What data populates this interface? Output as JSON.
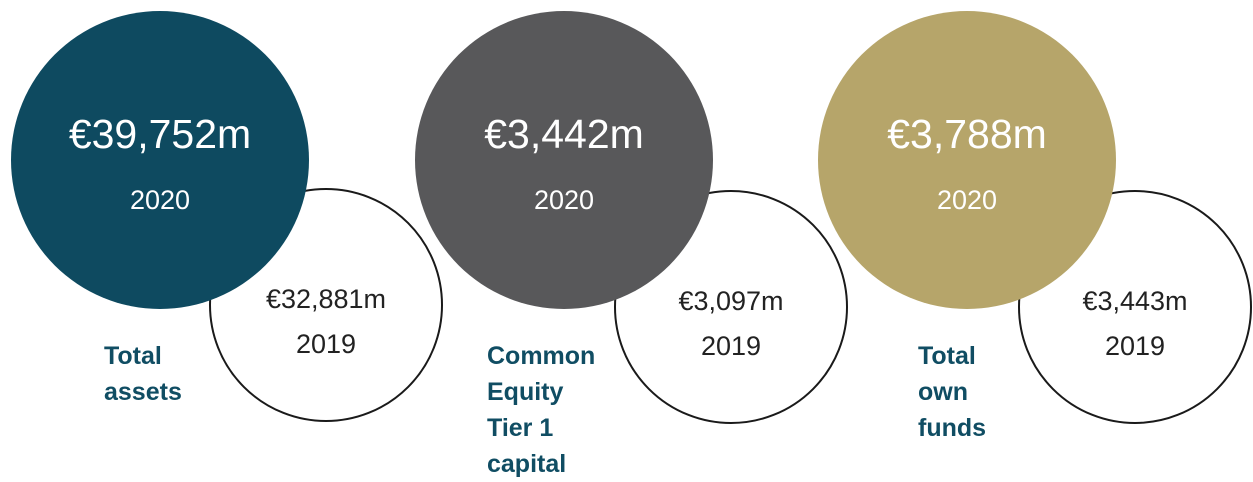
{
  "chart_data": {
    "type": "bubble-comparison",
    "metrics": [
      {
        "label_lines": [
          "Total",
          "assets"
        ],
        "current": {
          "value": 39752,
          "display": "€39,752m",
          "year": "2020"
        },
        "previous": {
          "value": 32881,
          "display": "€32,881m",
          "year": "2019"
        },
        "color": "#0e4a60"
      },
      {
        "label_lines": [
          "Common",
          "Equity",
          "Tier 1",
          "capital"
        ],
        "current": {
          "value": 3442,
          "display": "€3,442m",
          "year": "2020"
        },
        "previous": {
          "value": 3097,
          "display": "€3,097m",
          "year": "2019"
        },
        "color": "#58585a"
      },
      {
        "label_lines": [
          "Total",
          "own",
          "funds"
        ],
        "current": {
          "value": 3788,
          "display": "€3,788m",
          "year": "2020"
        },
        "previous": {
          "value": 3443,
          "display": "€3,443m",
          "year": "2019"
        },
        "color": "#b6a56a"
      }
    ],
    "label_color": "#104d63"
  }
}
